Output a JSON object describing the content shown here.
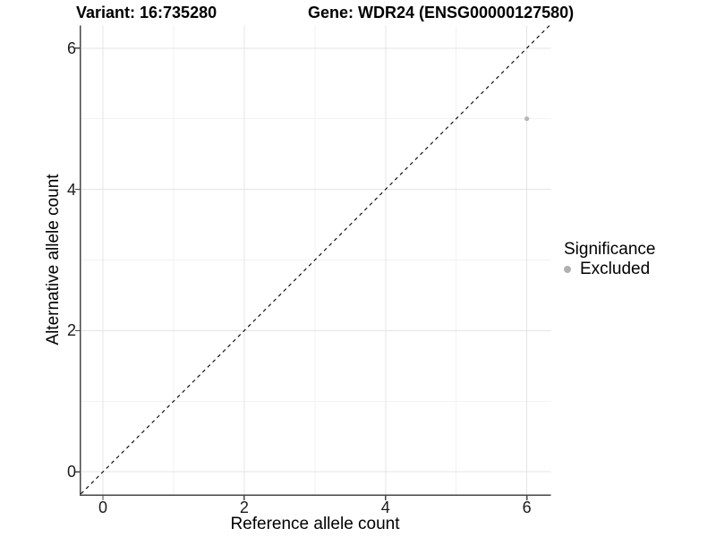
{
  "chart_data": {
    "type": "scatter",
    "title_variant": "Variant: 16:735280",
    "title_gene": "Gene: WDR24 (ENSG00000127580)",
    "xlabel": "Reference allele count",
    "ylabel": "Alternative allele count",
    "xlim": [
      -0.31,
      6.34
    ],
    "ylim": [
      -0.32,
      6.32
    ],
    "x_ticks": [
      0,
      2,
      4,
      6
    ],
    "y_ticks": [
      0,
      2,
      4,
      6
    ],
    "x_minor_ticks": [
      1,
      3,
      5
    ],
    "y_minor_ticks": [
      1,
      3,
      5
    ],
    "grid": "major+minor",
    "reference_line": {
      "style": "dashed",
      "slope": 1,
      "intercept": 0,
      "color": "#000000"
    },
    "series": [
      {
        "name": "Excluded",
        "color": "#b5b5b5",
        "points": [
          {
            "x": 6,
            "y": 5
          }
        ]
      }
    ],
    "legend": {
      "title": "Significance",
      "position": "right",
      "entries": [
        {
          "label": "Excluded",
          "color": "#b0b0b0",
          "marker": "circle"
        }
      ]
    }
  },
  "colors": {
    "background": "#ffffff",
    "grid_major": "#e4e4e4",
    "grid_minor": "#f2f2f2",
    "axis_line": "#464646",
    "tick_text": "#1a1a1a",
    "title_text": "#000000"
  }
}
